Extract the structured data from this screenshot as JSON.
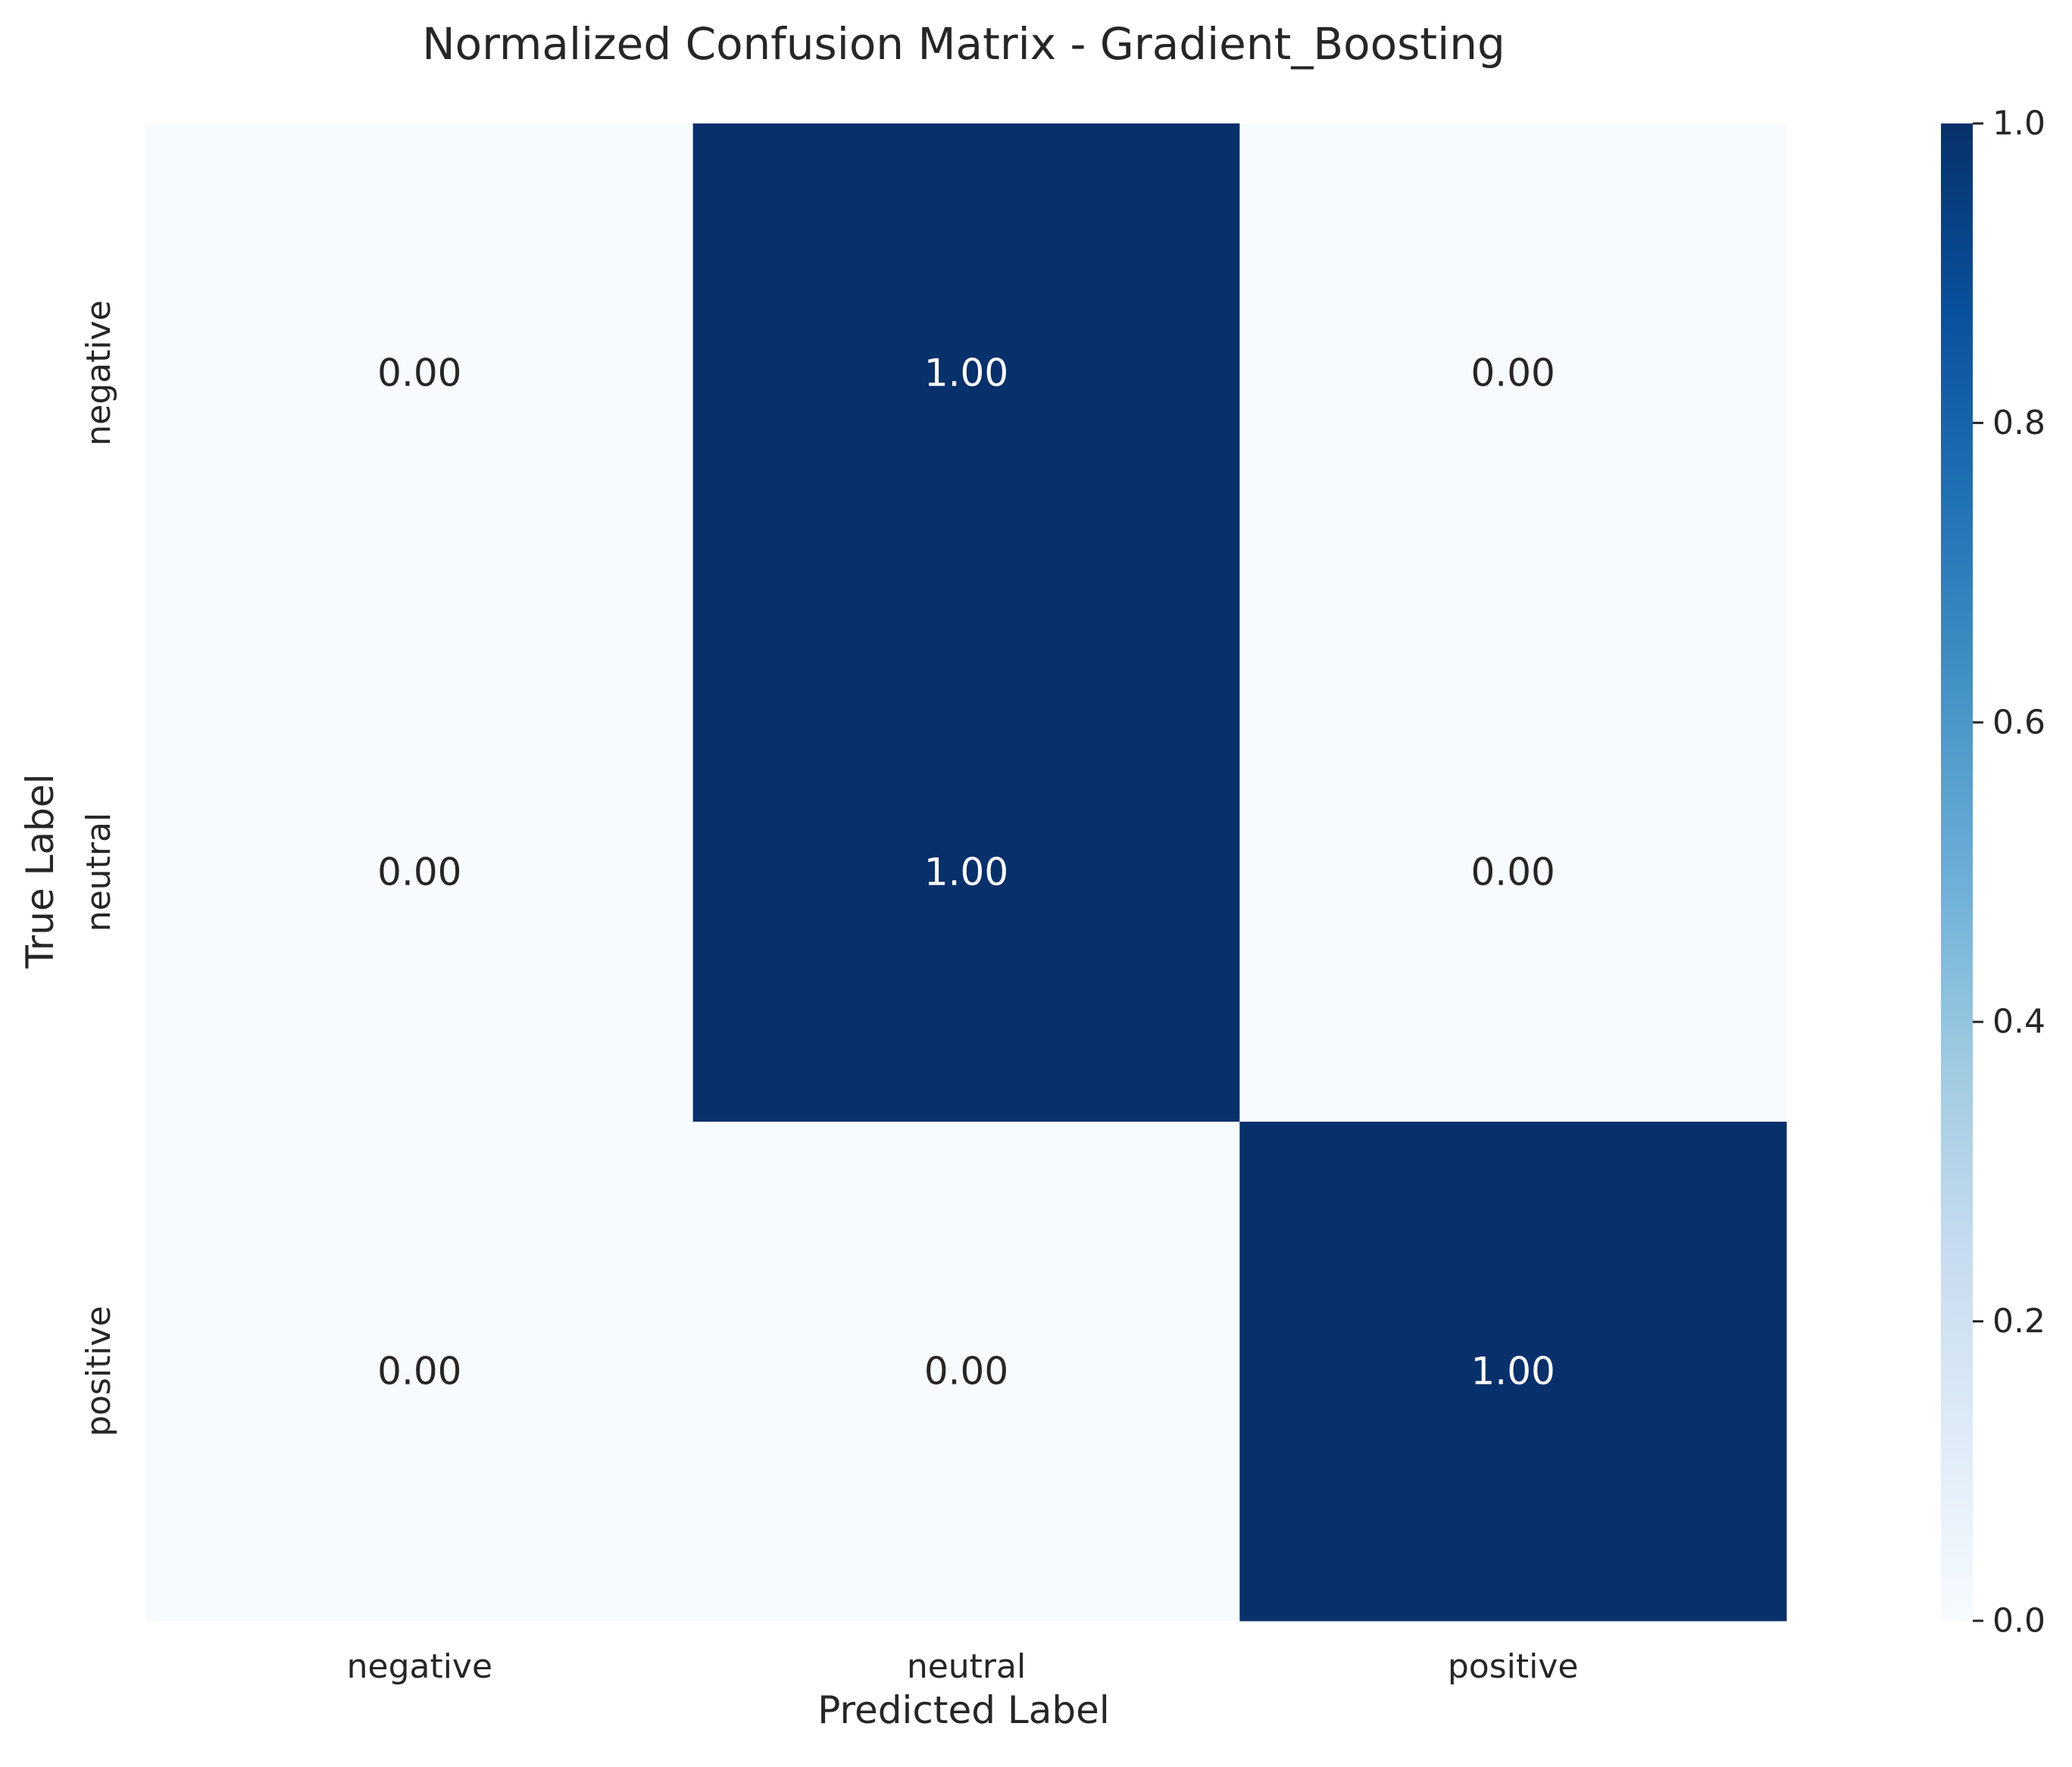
{
  "chart_data": {
    "type": "heatmap",
    "title": "Normalized Confusion Matrix - Gradient_Boosting",
    "xlabel": "Predicted Label",
    "ylabel": "True Label",
    "x_categories": [
      "negative",
      "neutral",
      "positive"
    ],
    "y_categories": [
      "negative",
      "neutral",
      "positive"
    ],
    "values": [
      [
        0.0,
        1.0,
        0.0
      ],
      [
        0.0,
        1.0,
        0.0
      ],
      [
        0.0,
        0.0,
        1.0
      ]
    ],
    "annotations": [
      [
        "0.00",
        "1.00",
        "0.00"
      ],
      [
        "0.00",
        "1.00",
        "0.00"
      ],
      [
        "0.00",
        "0.00",
        "1.00"
      ]
    ],
    "colormap": "Blues",
    "color_range": [
      0.0,
      1.0
    ],
    "colorbar_ticks": [
      "0.0",
      "0.2",
      "0.4",
      "0.6",
      "0.8",
      "1.0"
    ],
    "low_color": "#f7fbff",
    "high_color": "#08306b",
    "dark_text_color": "#262626",
    "light_text_color": "#ffffff"
  }
}
